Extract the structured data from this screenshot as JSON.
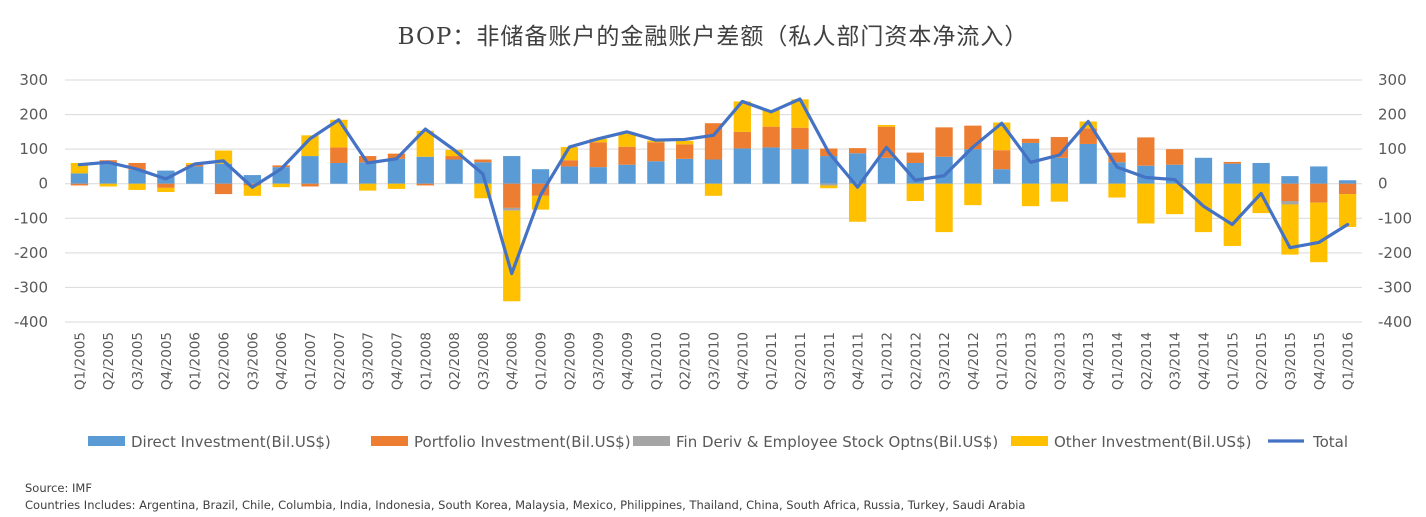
{
  "chart_data": {
    "type": "bar",
    "stacked": true,
    "title": "BOP：非储备账户的金融账户差额（私人部门资本净流入）",
    "ylim": [
      -400,
      300
    ],
    "yticks": [
      300,
      200,
      100,
      0,
      -100,
      -200,
      -300,
      -400
    ],
    "grid": true,
    "legend_position": "bottom",
    "categories": [
      "Q1/2005",
      "Q2/2005",
      "Q3/2005",
      "Q4/2005",
      "Q1/2006",
      "Q2/2006",
      "Q3/2006",
      "Q4/2006",
      "Q1/2007",
      "Q2/2007",
      "Q3/2007",
      "Q4/2007",
      "Q1/2008",
      "Q2/2008",
      "Q3/2008",
      "Q4/2008",
      "Q1/2009",
      "Q2/2009",
      "Q3/2009",
      "Q4/2009",
      "Q1/2010",
      "Q2/2010",
      "Q3/2010",
      "Q4/2010",
      "Q1/2011",
      "Q2/2011",
      "Q3/2011",
      "Q4/2011",
      "Q1/2012",
      "Q2/2012",
      "Q3/2012",
      "Q4/2012",
      "Q1/2013",
      "Q2/2013",
      "Q3/2013",
      "Q4/2013",
      "Q1/2014",
      "Q2/2014",
      "Q3/2014",
      "Q4/2014",
      "Q1/2015",
      "Q2/2015",
      "Q3/2015",
      "Q4/2015",
      "Q1/2016"
    ],
    "series": [
      {
        "name": "Direct Investment(Bil.US$)",
        "type": "bar",
        "color": "#5b9bd5",
        "values": [
          30,
          60,
          40,
          38,
          50,
          58,
          25,
          48,
          80,
          60,
          62,
          72,
          78,
          70,
          62,
          80,
          42,
          50,
          48,
          55,
          65,
          72,
          70,
          102,
          105,
          100,
          80,
          88,
          75,
          60,
          78,
          100,
          42,
          118,
          75,
          115,
          62,
          52,
          55,
          75,
          58,
          60,
          22,
          50,
          10
        ]
      },
      {
        "name": "Portfolio Investment(Bil.US$)",
        "type": "bar",
        "color": "#ed7d31",
        "values": [
          -5,
          8,
          20,
          -12,
          5,
          -30,
          -5,
          5,
          -8,
          45,
          18,
          15,
          -5,
          10,
          8,
          -70,
          -35,
          18,
          72,
          52,
          55,
          42,
          105,
          48,
          60,
          62,
          22,
          15,
          90,
          30,
          85,
          68,
          55,
          12,
          60,
          45,
          28,
          82,
          45,
          0,
          5,
          0,
          -50,
          -55,
          -30
        ]
      },
      {
        "name": "Fin Deriv & Employee Stock Optns(Bil.US$)",
        "type": "bar",
        "color": "#a5a5a5",
        "values": [
          0,
          0,
          0,
          0,
          0,
          0,
          0,
          0,
          0,
          0,
          0,
          0,
          0,
          0,
          0,
          -8,
          0,
          0,
          0,
          0,
          0,
          0,
          0,
          0,
          0,
          0,
          -5,
          0,
          0,
          0,
          0,
          0,
          0,
          0,
          0,
          0,
          0,
          0,
          0,
          0,
          0,
          0,
          -10,
          0,
          0
        ]
      },
      {
        "name": "Other Investment(Bil.US$)",
        "type": "bar",
        "color": "#ffc000",
        "values": [
          30,
          -8,
          -18,
          -12,
          5,
          38,
          -30,
          -10,
          60,
          80,
          -20,
          -15,
          75,
          18,
          -42,
          -262,
          -40,
          38,
          10,
          40,
          5,
          10,
          -35,
          88,
          48,
          82,
          -8,
          -110,
          5,
          -50,
          -140,
          -62,
          80,
          -65,
          -52,
          20,
          -40,
          -115,
          -88,
          -140,
          -180,
          -85,
          -145,
          -172,
          -95
        ]
      },
      {
        "name": "Total",
        "type": "line",
        "color": "#4472c4",
        "values": [
          55,
          62,
          42,
          14,
          57,
          66,
          -10,
          43,
          130,
          185,
          60,
          72,
          158,
          98,
          28,
          -260,
          -33,
          106,
          130,
          150,
          126,
          128,
          140,
          238,
          208,
          245,
          90,
          -10,
          105,
          10,
          23,
          106,
          175,
          62,
          83,
          180,
          48,
          18,
          12,
          -65,
          -118,
          -28,
          -185,
          -170,
          -118
        ]
      }
    ],
    "notes": [
      "Source: IMF",
      "Countries Includes: Argentina, Brazil, Chile, Columbia, India, Indonesia, South Korea, Malaysia, Mexico, Philippines, Thailand, China, South Africa, Russia, Turkey, Saudi Arabia"
    ]
  }
}
